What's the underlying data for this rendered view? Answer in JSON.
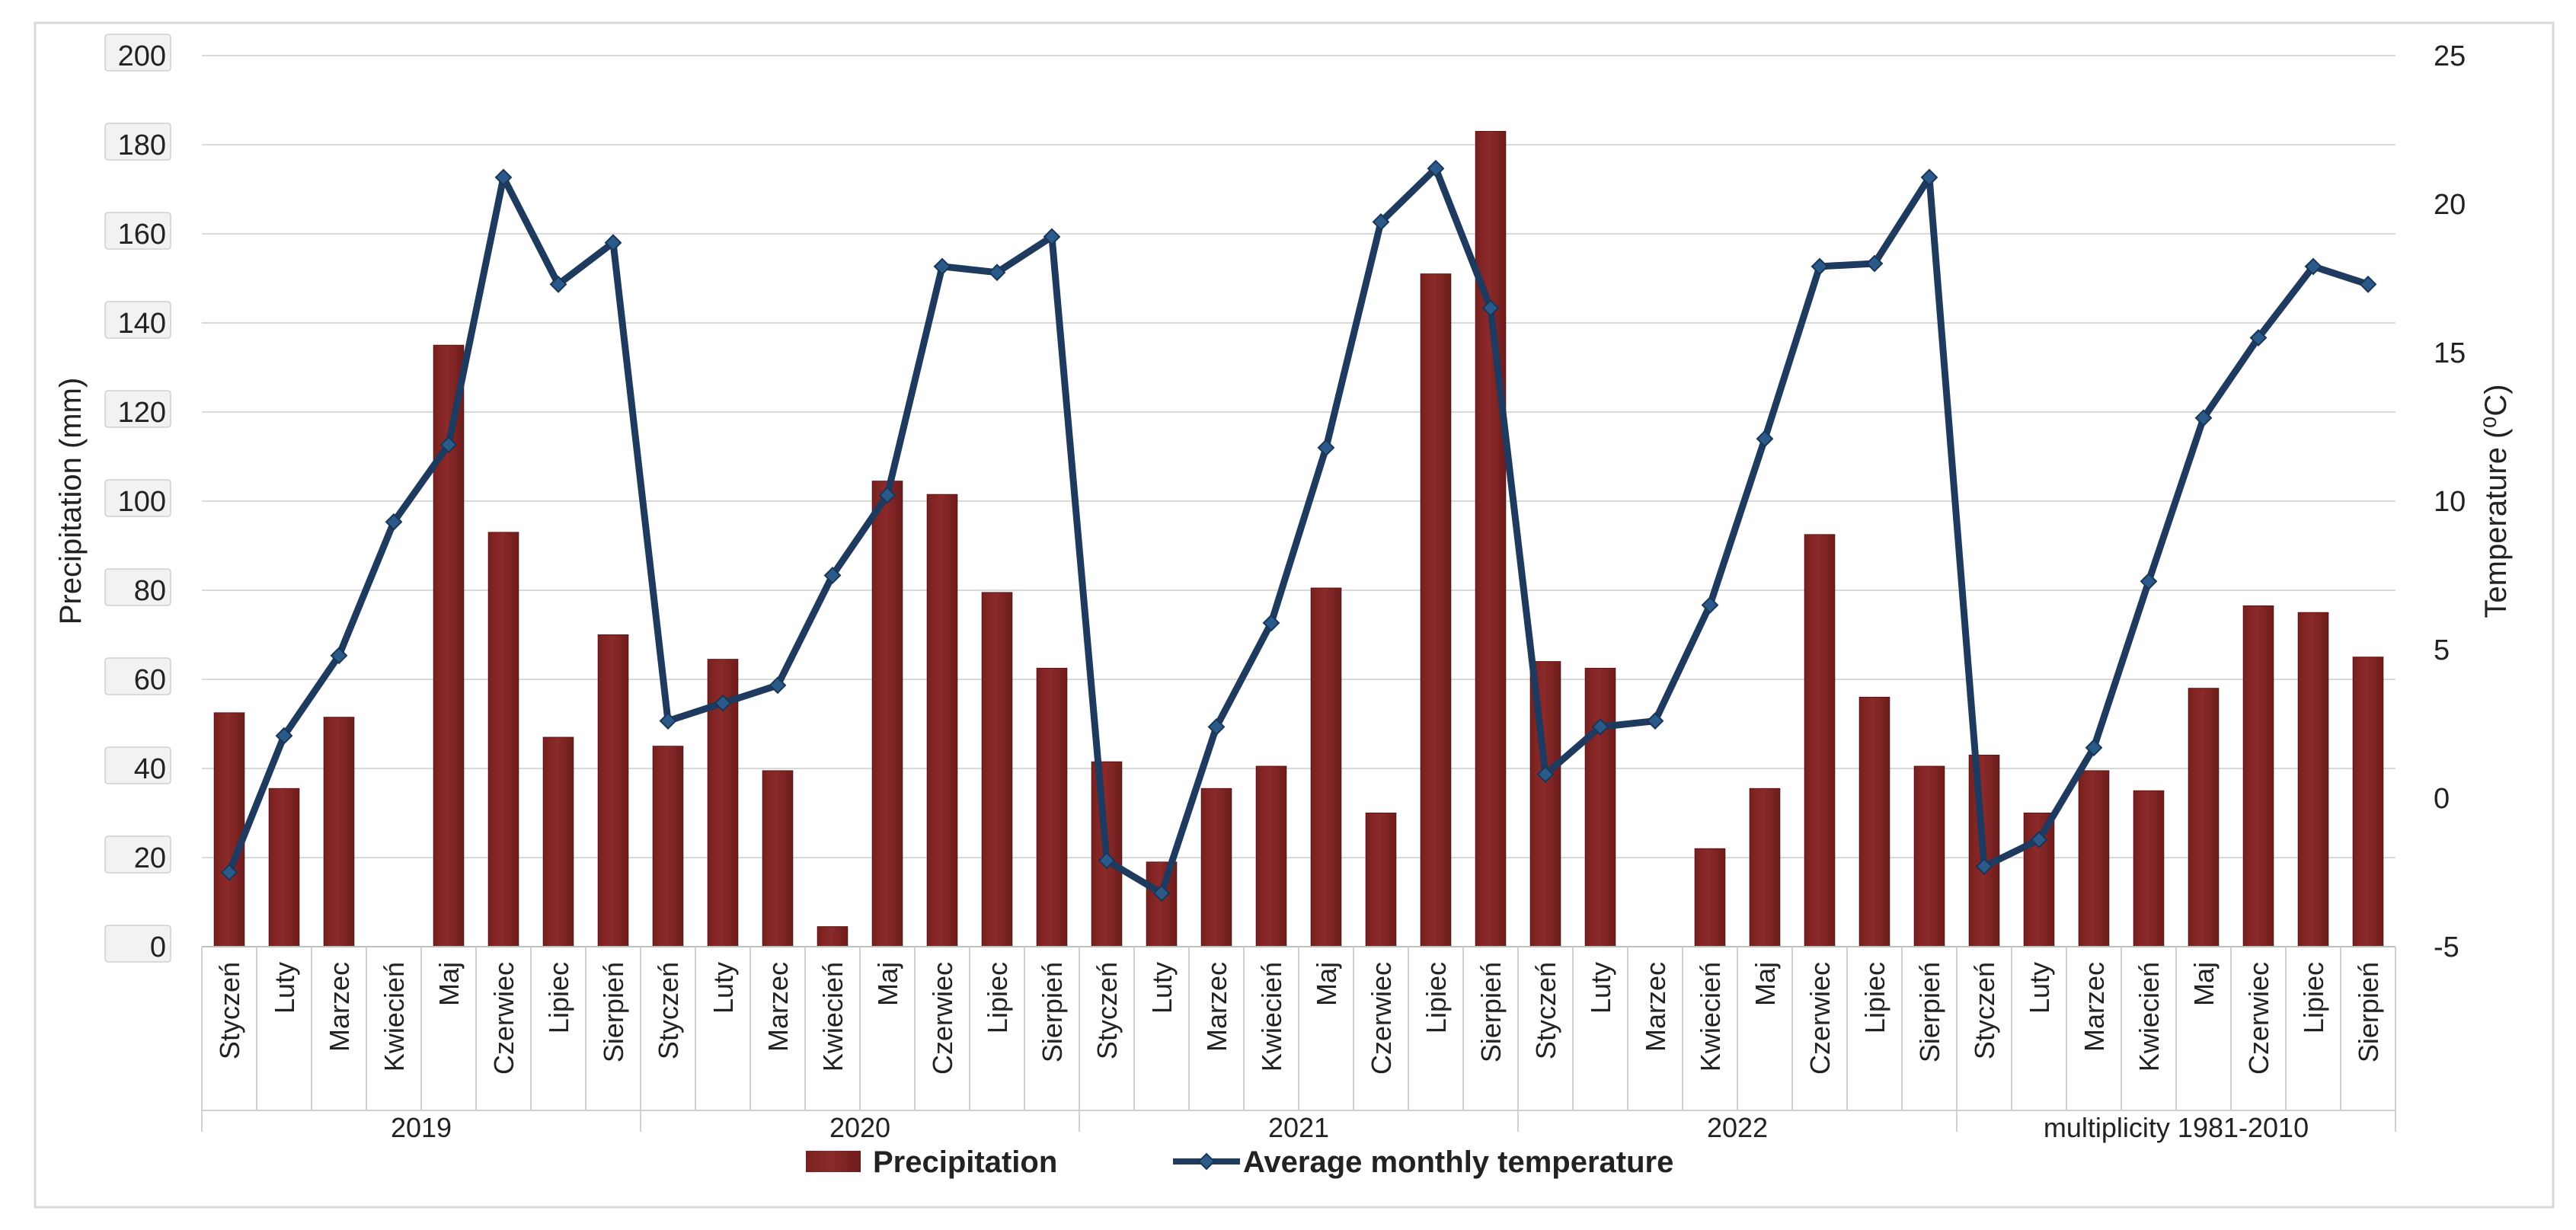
{
  "chart_data": {
    "type": "bar+line",
    "groups": [
      {
        "label": "2019",
        "months": [
          "Styczeń",
          "Luty",
          "Marzec",
          "Kwiecień",
          "Maj",
          "Czerwiec",
          "Lipiec",
          "Sierpień"
        ]
      },
      {
        "label": "2020",
        "months": [
          "Styczeń",
          "Luty",
          "Marzec",
          "Kwiecień",
          "Maj",
          "Czerwiec",
          "Lipiec",
          "Sierpień"
        ]
      },
      {
        "label": "2021",
        "months": [
          "Styczeń",
          "Luty",
          "Marzec",
          "Kwiecień",
          "Maj",
          "Czerwiec",
          "Lipiec",
          "Sierpień"
        ]
      },
      {
        "label": "2022",
        "months": [
          "Styczeń",
          "Luty",
          "Marzec",
          "Kwiecień",
          "Maj",
          "Czerwiec",
          "Lipiec",
          "Sierpień"
        ]
      },
      {
        "label": "multiplicity 1981-2010",
        "months": [
          "Styczeń",
          "Luty",
          "Marzec",
          "Kwiecień",
          "Maj",
          "Czerwiec",
          "Lipiec",
          "Sierpień"
        ]
      }
    ],
    "series": [
      {
        "name": "Precipitation",
        "type": "bar",
        "axis": "left",
        "color": "#8b2a2a",
        "values": [
          52.5,
          35.5,
          51.5,
          0,
          135,
          93,
          47,
          70,
          45,
          64.5,
          39.5,
          4.5,
          104.5,
          101.5,
          79.5,
          62.5,
          41.5,
          19,
          35.5,
          40.5,
          80.5,
          30,
          151,
          183,
          64,
          62.5,
          0,
          22,
          35.5,
          92.5,
          56,
          40.5,
          43,
          30,
          39.5,
          35,
          58,
          76.5,
          75,
          65
        ]
      },
      {
        "name": "Average monthly temperature",
        "type": "line",
        "axis": "right",
        "color": "#1f3a5f",
        "values": [
          -2.5,
          2.1,
          4.8,
          9.3,
          11.9,
          20.9,
          17.3,
          18.7,
          2.6,
          3.2,
          3.8,
          7.5,
          10.2,
          17.9,
          17.7,
          18.9,
          -2.1,
          -3.2,
          2.4,
          5.9,
          11.8,
          19.4,
          21.2,
          16.5,
          0.8,
          2.4,
          2.6,
          6.5,
          12.1,
          17.9,
          18.0,
          20.9,
          -2.3,
          -1.4,
          1.7,
          7.3,
          12.8,
          15.5,
          17.9,
          17.3
        ]
      }
    ],
    "y_left": {
      "label": "Precipitation (mm)",
      "min": 0,
      "max": 200,
      "step": 20,
      "ticks": [
        "0",
        "20",
        "40",
        "60",
        "80",
        "100",
        "120",
        "140",
        "160",
        "180",
        "200"
      ]
    },
    "y_right": {
      "label": "Temperature (⁰C)",
      "min": -5,
      "max": 25,
      "step": 5,
      "ticks": [
        "-5",
        "0",
        "5",
        "10",
        "15",
        "20",
        "25"
      ]
    },
    "grid": true,
    "legend": {
      "position": "bottom",
      "entries": [
        "Precipitation",
        "Average monthly temperature"
      ]
    }
  }
}
